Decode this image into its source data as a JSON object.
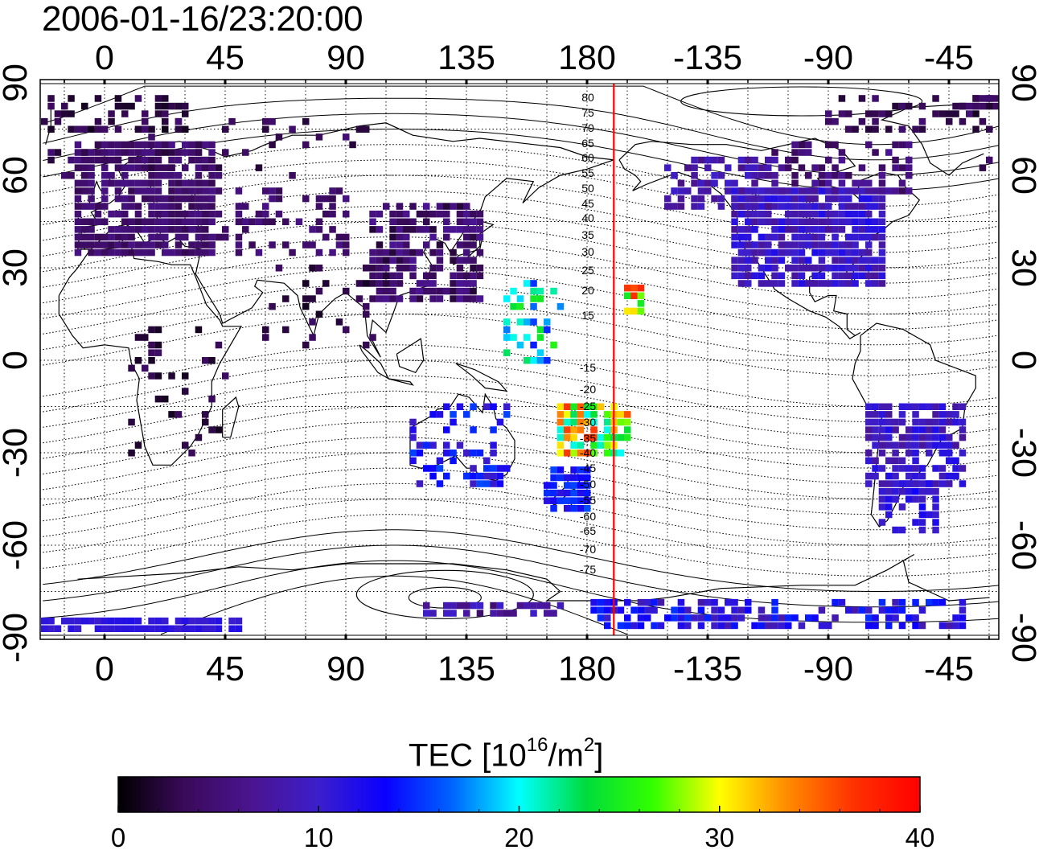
{
  "timestamp": "2006-01-16/23:20:00",
  "map": {
    "lon_ticks_top": [
      "0",
      "45",
      "90",
      "135",
      "180",
      "-135",
      "-90",
      "-45"
    ],
    "lon_ticks_bottom": [
      "0",
      "45",
      "90",
      "135",
      "180",
      "-135",
      "-90",
      "-45"
    ],
    "lat_ticks_left": [
      "90",
      "60",
      "30",
      "0",
      "-30",
      "-60",
      "-90"
    ],
    "lat_ticks_right": [
      "90",
      "60",
      "30",
      "0",
      "-30",
      "-60",
      "-90"
    ],
    "meridian_line": {
      "longitude": -170,
      "color": "#ff0000"
    },
    "magnetic_latitude_labels_north": [
      "80",
      "75",
      "70",
      "65",
      "60",
      "55",
      "50",
      "45",
      "40",
      "35",
      "30",
      "25",
      "20",
      "15"
    ],
    "magnetic_latitude_labels_south": [
      "-15",
      "-20",
      "-25",
      "-30",
      "-35",
      "-40",
      "-45",
      "-50",
      "-55",
      "-60",
      "-65",
      "-70",
      "-75"
    ]
  },
  "colorbar": {
    "title_prefix": "TEC  [10",
    "title_exp1": "16",
    "title_mid": "/m",
    "title_exp2": "2",
    "title_suffix": "]",
    "ticks": [
      "0",
      "10",
      "20",
      "30",
      "40"
    ],
    "min": 0,
    "max": 40,
    "stops": [
      "#000000",
      "#3a0a5a",
      "#4b1490",
      "#3c1ecc",
      "#0a00ff",
      "#0064ff",
      "#00ffff",
      "#00dc3c",
      "#32ff00",
      "#ffff00",
      "#ff8c00",
      "#ff3200",
      "#ff0000"
    ]
  }
}
